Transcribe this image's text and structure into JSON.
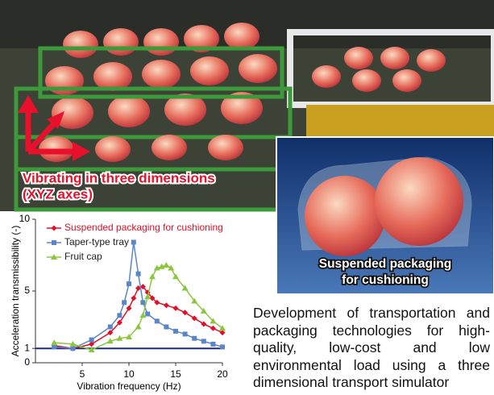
{
  "photo_label": [
    "Vibrating in three dimensions",
    "(XYZ axes)"
  ],
  "inset_label": [
    "Suspended packaging",
    "for cushioning"
  ],
  "caption": "Development of transportation and packaging technologies for high-quality, low-cost and low environmental load using a three dimensional transport simulator",
  "chart_data": {
    "type": "line",
    "x_label": "Vibration frequency (Hz)",
    "y_label": "Acceleration transmissibility (-)",
    "xlim": [
      0,
      20
    ],
    "ylim": [
      0,
      10
    ],
    "xticks": [
      5,
      10,
      15,
      20
    ],
    "yticks": [
      0,
      1,
      5,
      10
    ],
    "reference_line": 1,
    "reference_color": "#1a2a7a",
    "legend": "top-left",
    "series": [
      {
        "name": "Suspended packaging for cushioning",
        "color": "#e0102a",
        "marker": "diamond",
        "x": [
          2,
          4,
          6,
          8,
          9,
          10,
          10.5,
          11,
          11.5,
          12,
          12.5,
          13,
          14,
          15,
          16,
          17,
          18,
          19,
          20
        ],
        "values": [
          1.2,
          1.0,
          1.3,
          2.1,
          2.8,
          3.8,
          4.5,
          5.2,
          5.3,
          4.9,
          4.5,
          4.2,
          4.0,
          3.8,
          3.5,
          3.1,
          2.7,
          2.4,
          2.1
        ]
      },
      {
        "name": "Taper-type tray",
        "color": "#5a86c8",
        "marker": "square",
        "x": [
          2,
          4,
          6,
          8,
          9,
          9.5,
          10,
          10.5,
          11,
          11.5,
          12,
          13,
          14,
          15,
          16,
          17,
          18,
          19,
          20
        ],
        "values": [
          1.1,
          1.0,
          1.6,
          2.5,
          3.3,
          4.2,
          5.5,
          8.4,
          6.2,
          4.2,
          3.4,
          2.9,
          2.5,
          2.2,
          2.0,
          1.7,
          1.5,
          1.3,
          1.1
        ]
      },
      {
        "name": "Fruit cap",
        "color": "#8cc63f",
        "marker": "triangle",
        "x": [
          2,
          4,
          6,
          8,
          9,
          10,
          11,
          11.5,
          12,
          12.5,
          13,
          13.5,
          14,
          14.5,
          15,
          16,
          17,
          18,
          19,
          20
        ],
        "values": [
          1.4,
          1.3,
          0.9,
          1.5,
          1.7,
          1.8,
          2.5,
          3.3,
          4.6,
          6.0,
          6.6,
          6.7,
          6.8,
          6.6,
          6.0,
          5.2,
          4.3,
          3.6,
          2.9,
          2.4
        ]
      }
    ]
  }
}
